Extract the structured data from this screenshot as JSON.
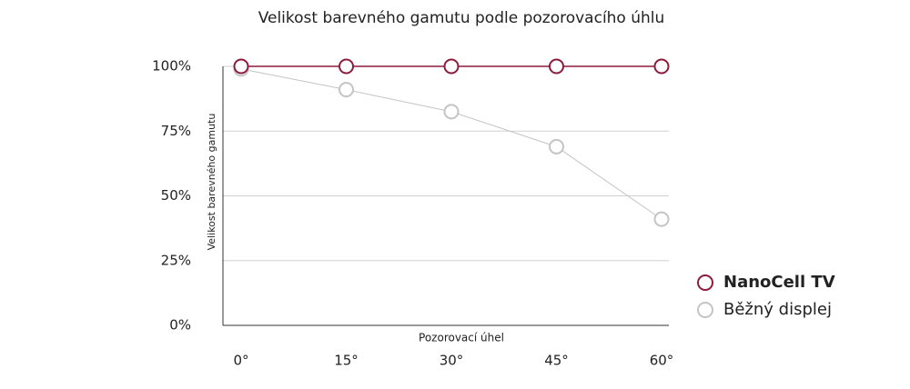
{
  "chart_data": {
    "type": "line",
    "title": "Velikost barevného gamutu podle pozorovacího úhlu",
    "x_label": "Pozorovací úhel",
    "y_label": "Velikost barevného gamutu",
    "categories": [
      "0°",
      "15°",
      "30°",
      "45°",
      "60°"
    ],
    "series": [
      {
        "name": "NanoCell TV",
        "color": "#8c1c3c",
        "values": [
          100,
          100,
          100,
          100,
          100
        ]
      },
      {
        "name": "Běžný displej",
        "color": "#c4c4c4",
        "values": [
          99,
          91,
          82.5,
          69,
          41
        ]
      }
    ],
    "ylim": [
      0,
      100
    ],
    "yticks": [
      {
        "value": 0,
        "label": "0%"
      },
      {
        "value": 25,
        "label": "25%"
      },
      {
        "value": 50,
        "label": "50%"
      },
      {
        "value": 75,
        "label": "75%"
      },
      {
        "value": 100,
        "label": "100%"
      }
    ],
    "grid": true,
    "legend": "right"
  }
}
